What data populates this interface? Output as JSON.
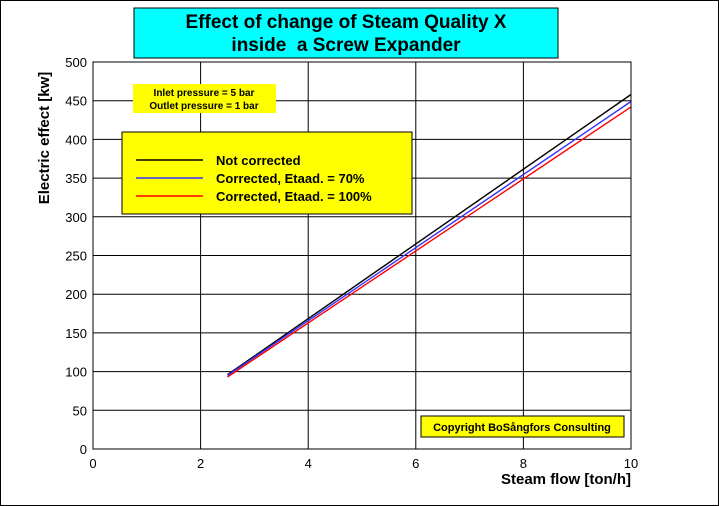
{
  "colors": {
    "title_box": "#00ffff",
    "note_box": "#ffff00",
    "legend_box": "#ffff00",
    "copyright_box": "#ffff00",
    "grid": "#000000",
    "background": "#ffffff"
  },
  "chart_data": {
    "type": "line",
    "title_line1": "Effect of change of Steam Quality X",
    "title_line2": "inside  a Screw Expander",
    "xlabel": "Steam flow [ton/h]",
    "ylabel": "Electric effect [kw]",
    "xlim": [
      0,
      10
    ],
    "ylim": [
      0,
      500
    ],
    "x_ticks": [
      "0",
      "2",
      "4",
      "6",
      "8",
      "10"
    ],
    "y_ticks": [
      "0",
      "50",
      "100",
      "150",
      "200",
      "250",
      "300",
      "350",
      "400",
      "450",
      "500"
    ],
    "grid": true,
    "legend_position": "upper-left",
    "notes": [
      "Inlet pressure = 5 bar",
      "Outlet pressure = 1 bar"
    ],
    "copyright": "Copyright BoSångfors Consulting",
    "series": [
      {
        "name": "Not corrected",
        "color": "#000000",
        "x": [
          2.5,
          10
        ],
        "y": [
          96,
          458
        ]
      },
      {
        "name": "Corrected, Etaad. = 70%",
        "color": "#3333ff",
        "x": [
          2.5,
          10
        ],
        "y": [
          95,
          449
        ]
      },
      {
        "name": "Corrected, Etaad. = 100%",
        "color": "#ff0000",
        "x": [
          2.5,
          10
        ],
        "y": [
          93,
          442
        ]
      }
    ]
  }
}
